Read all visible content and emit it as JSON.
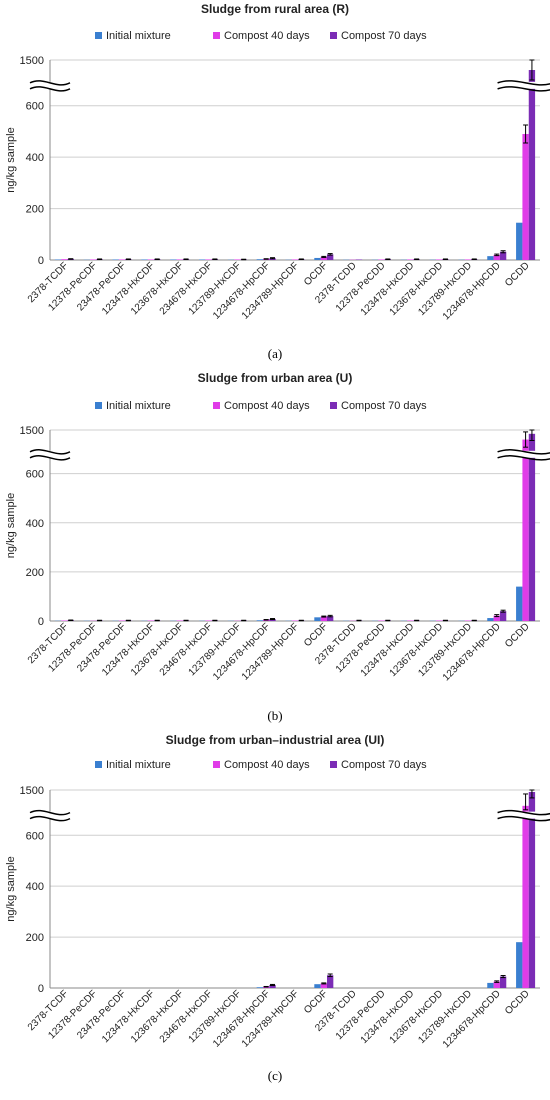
{
  "chart_data": [
    {
      "type": "bar",
      "title": "Sludge from rural area (R)",
      "panel_label": "(a)",
      "ylabel": "ng/kg sample",
      "ylim": [
        0,
        1500
      ],
      "axis_break": [
        700,
        1400
      ],
      "yticks": [
        "0",
        "200",
        "400",
        "600",
        "1500"
      ],
      "legend_position": "top",
      "colors": [
        "#3a7fd0",
        "#e03ce8",
        "#7b2cb5"
      ],
      "categories": [
        "2378-TCDF",
        "12378-PeCDF",
        "23478-PeCDF",
        "123478-HxCDF",
        "123678-HxCDF",
        "234678-HxCDF",
        "123789-HxCDF",
        "1234678-HpCDF",
        "1234789-HpCDF",
        "OCDF",
        "2378-TCDD",
        "12378-PeCDD",
        "123478-HxCDD",
        "123678-HxCDD",
        "123789-HxCDD",
        "1234678-HpCDD",
        "OCDD"
      ],
      "series": [
        {
          "name": "Initial mixture",
          "values": [
            2,
            1,
            2,
            2,
            2,
            2,
            1,
            3,
            1,
            8,
            1,
            1,
            1,
            1,
            1,
            15,
            145
          ],
          "errors": [
            0,
            0,
            0,
            0,
            0,
            0,
            0,
            0,
            0,
            0,
            0,
            0,
            0,
            0,
            0,
            0,
            0
          ]
        },
        {
          "name": "Compost 40 days",
          "values": [
            3,
            2,
            2,
            2,
            2,
            2,
            2,
            4,
            2,
            12,
            1,
            2,
            2,
            2,
            2,
            20,
            490
          ],
          "errors": [
            0,
            0,
            0,
            0,
            0,
            0,
            0,
            1,
            0,
            2,
            0,
            0,
            0,
            0,
            0,
            3,
            35
          ]
        },
        {
          "name": "Compost 70 days",
          "values": [
            4,
            3,
            3,
            3,
            3,
            3,
            2,
            7,
            3,
            22,
            2,
            3,
            3,
            3,
            3,
            32,
            1450
          ],
          "errors": [
            1,
            1,
            1,
            1,
            1,
            1,
            1,
            2,
            1,
            3,
            0,
            1,
            1,
            1,
            1,
            4,
            100
          ]
        }
      ]
    },
    {
      "type": "bar",
      "title": "Sludge from urban area (U)",
      "panel_label": "(b)",
      "ylabel": "ng/kg sample",
      "ylim": [
        0,
        1500
      ],
      "axis_break": [
        700,
        1400
      ],
      "yticks": [
        "0",
        "200",
        "400",
        "600",
        "1500"
      ],
      "legend_position": "top",
      "colors": [
        "#3a7fd0",
        "#e03ce8",
        "#7b2cb5"
      ],
      "categories": [
        "2378-TCDF",
        "12378-PeCDF",
        "23478-PeCDF",
        "123478-HxCDF",
        "123678-HxCDF",
        "234678-HxCDF",
        "123789-HxCDF",
        "1234678-HpCDF",
        "1234789-HpCDF",
        "OCDF",
        "2378-TCDD",
        "12378-PeCDD",
        "123478-HxCDD",
        "123678-HxCDD",
        "123789-HxCDD",
        "1234678-HpCDD",
        "OCDD"
      ],
      "series": [
        {
          "name": "Initial mixture",
          "values": [
            1,
            1,
            1,
            1,
            1,
            1,
            1,
            3,
            1,
            15,
            1,
            1,
            1,
            1,
            1,
            12,
            140
          ],
          "errors": [
            0,
            0,
            0,
            0,
            0,
            0,
            0,
            0,
            0,
            0,
            0,
            0,
            0,
            0,
            0,
            0,
            0
          ]
        },
        {
          "name": "Compost 40 days",
          "values": [
            2,
            1,
            2,
            2,
            2,
            2,
            1,
            5,
            2,
            18,
            1,
            2,
            2,
            2,
            2,
            22,
            1450
          ],
          "errors": [
            0,
            0,
            0,
            0,
            0,
            0,
            0,
            1,
            0,
            2,
            0,
            0,
            0,
            0,
            0,
            4,
            40
          ]
        },
        {
          "name": "Compost 70 days",
          "values": [
            3,
            2,
            2,
            2,
            2,
            2,
            2,
            8,
            2,
            20,
            2,
            2,
            2,
            2,
            2,
            40,
            1480
          ],
          "errors": [
            1,
            1,
            1,
            1,
            1,
            1,
            1,
            2,
            1,
            3,
            1,
            1,
            1,
            1,
            1,
            4,
            35
          ]
        }
      ]
    },
    {
      "type": "bar",
      "title": "Sludge from urban–industrial area (UI)",
      "panel_label": "(c)",
      "ylabel": "ng/kg sample",
      "ylim": [
        0,
        1500
      ],
      "axis_break": [
        700,
        1400
      ],
      "yticks": [
        "0",
        "200",
        "400",
        "600",
        "1500"
      ],
      "legend_position": "top",
      "colors": [
        "#3a7fd0",
        "#e03ce8",
        "#7b2cb5"
      ],
      "categories": [
        "2378-TCDF",
        "12378-PeCDF",
        "23478-PeCDF",
        "123478-HxCDF",
        "123678-HxCDF",
        "234678-HxCDF",
        "123789-HxCDF",
        "1234678-HpCDF",
        "1234789-HpCDF",
        "OCDF",
        "2378-TCDD",
        "12378-PeCDD",
        "123478-HxCDD",
        "123678-HxCDD",
        "123789-HxCDD",
        "1234678-HpCDD",
        "OCDD"
      ],
      "series": [
        {
          "name": "Initial mixture",
          "values": [
            0,
            0,
            0,
            0,
            0,
            0,
            0,
            3,
            0,
            15,
            0,
            0,
            0,
            0,
            0,
            20,
            180
          ],
          "errors": [
            0,
            0,
            0,
            0,
            0,
            0,
            0,
            0,
            0,
            0,
            0,
            0,
            0,
            0,
            0,
            0,
            0
          ]
        },
        {
          "name": "Compost 40 days",
          "values": [
            0,
            0,
            0,
            0,
            0,
            0,
            0,
            5,
            0,
            18,
            0,
            0,
            0,
            0,
            0,
            25,
            1420
          ],
          "errors": [
            0,
            0,
            0,
            0,
            0,
            0,
            0,
            1,
            0,
            2,
            0,
            0,
            0,
            0,
            0,
            3,
            60
          ]
        },
        {
          "name": "Compost 70 days",
          "values": [
            0,
            0,
            0,
            0,
            0,
            0,
            0,
            12,
            0,
            50,
            0,
            0,
            0,
            0,
            0,
            45,
            1490
          ],
          "errors": [
            0,
            0,
            0,
            0,
            0,
            0,
            0,
            2,
            0,
            5,
            0,
            0,
            0,
            0,
            0,
            4,
            30
          ]
        }
      ]
    }
  ]
}
